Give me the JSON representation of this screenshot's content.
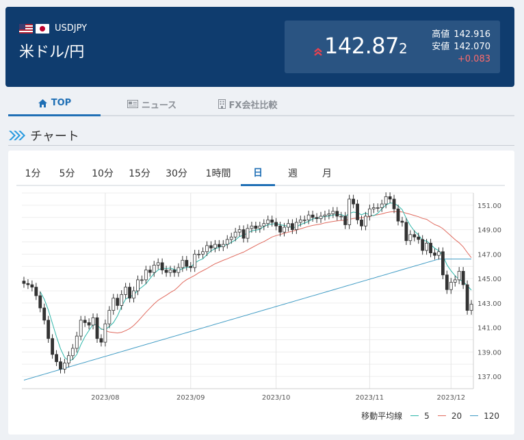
{
  "header": {
    "pair_code": "USDJPY",
    "pair_name": "米ドル/円",
    "price_main": "142.87",
    "price_sub": "2",
    "high_label": "高値",
    "high_value": "142.916",
    "low_label": "安値",
    "low_value": "142.070",
    "change": "+0.083"
  },
  "tabs": [
    {
      "label": "TOP",
      "icon": "home-icon"
    },
    {
      "label": "ニュース",
      "icon": "newspaper-icon"
    },
    {
      "label": "FX会社比較",
      "icon": "building-icon"
    }
  ],
  "section_title": "チャート",
  "periods": [
    "1分",
    "5分",
    "10分",
    "15分",
    "30分",
    "1時間",
    "日",
    "週",
    "月"
  ],
  "active_period": "日",
  "legend": {
    "label": "移動平均線",
    "items": [
      {
        "name": "5",
        "color": "#2bb5a8"
      },
      {
        "name": "20",
        "color": "#e06a5e"
      },
      {
        "name": "120",
        "color": "#3f9bc4"
      }
    ]
  },
  "colors": {
    "header_bg": "#0f3c6e",
    "accent": "#1f6fb5",
    "up": "#ff6b6b"
  },
  "chart_data": {
    "type": "candlestick",
    "x_ticks": [
      "2023/08",
      "2023/09",
      "2023/10",
      "2023/11",
      "2023/12"
    ],
    "y_ticks": [
      137.0,
      139.0,
      141.0,
      143.0,
      145.0,
      147.0,
      149.0,
      151.0
    ],
    "y_tick_labels": [
      "137.00",
      "139.00",
      "141.00",
      "143.00",
      "145.00",
      "147.00",
      "149.00",
      "151.00"
    ],
    "ylim": [
      136.0,
      152.0
    ],
    "close": [
      144.6,
      144.5,
      144.3,
      143.6,
      142.6,
      141.6,
      140.1,
      138.8,
      138.2,
      137.6,
      138.1,
      138.7,
      139.3,
      140.3,
      141.6,
      141.4,
      141.2,
      141.8,
      140.1,
      139.8,
      141.3,
      142.4,
      143.4,
      142.8,
      143.7,
      144.3,
      143.4,
      144.0,
      144.9,
      144.9,
      145.7,
      145.5,
      146.1,
      146.3,
      145.7,
      145.5,
      145.7,
      145.5,
      145.9,
      146.5,
      146.0,
      145.9,
      147.0,
      147.0,
      147.2,
      147.7,
      147.5,
      147.8,
      147.6,
      147.8,
      148.2,
      148.4,
      148.8,
      149.0,
      148.3,
      149.1,
      149.3,
      149.1,
      149.3,
      149.5,
      149.8,
      149.6,
      149.3,
      148.8,
      149.2,
      149.5,
      149.0,
      149.6,
      149.8,
      149.8,
      150.2,
      150.0,
      149.9,
      150.1,
      150.2,
      150.3,
      150.5,
      150.1,
      150.1,
      149.4,
      151.5,
      151.1,
      149.8,
      149.3,
      150.1,
      150.7,
      150.8,
      150.8,
      151.1,
      151.7,
      151.5,
      150.7,
      149.7,
      149.6,
      148.1,
      148.6,
      148.4,
      148.2,
      147.3,
      147.9,
      147.1,
      146.9,
      147.2,
      145.3,
      144.1,
      144.7,
      144.9,
      145.6,
      144.5,
      142.4,
      142.9
    ]
  }
}
